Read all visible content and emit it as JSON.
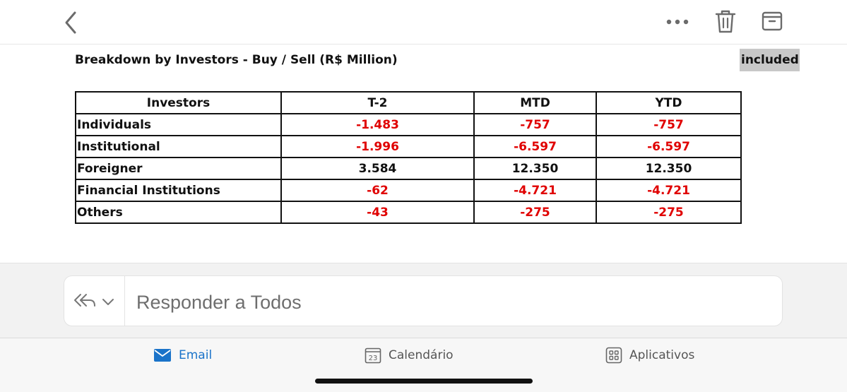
{
  "header": {
    "back_icon": "chevron-left-icon",
    "more_icon": "ellipsis-icon",
    "delete_icon": "trash-icon",
    "archive_icon": "archive-icon"
  },
  "email": {
    "heading": "Breakdown by Investors - Buy / Sell (R$ Million)",
    "highlight_label": "included",
    "table": {
      "headers": [
        "Investors",
        "T-2",
        "MTD",
        "YTD"
      ],
      "rows": [
        {
          "name": "Individuals",
          "t2": "-1.483",
          "mtd": "-757",
          "ytd": "-757"
        },
        {
          "name": "Institutional",
          "t2": "-1.996",
          "mtd": "-6.597",
          "ytd": "-6.597"
        },
        {
          "name": "Foreigner",
          "t2": "3.584",
          "mtd": "12.350",
          "ytd": "12.350"
        },
        {
          "name": "Financial Institutions",
          "t2": "-62",
          "mtd": "-4.721",
          "ytd": "-4.721"
        },
        {
          "name": "Others",
          "t2": "-43",
          "mtd": "-275",
          "ytd": "-275"
        }
      ],
      "negative_color": "#e00000",
      "positive_color": "#111111"
    }
  },
  "reply": {
    "placeholder": "Responder a Todos",
    "mode_icon": "reply-all-icon"
  },
  "tabbar": {
    "email_label": "Email",
    "calendar_label": "Calendário",
    "calendar_day": "23",
    "apps_label": "Aplicativos",
    "active_color": "#1a73c9"
  }
}
